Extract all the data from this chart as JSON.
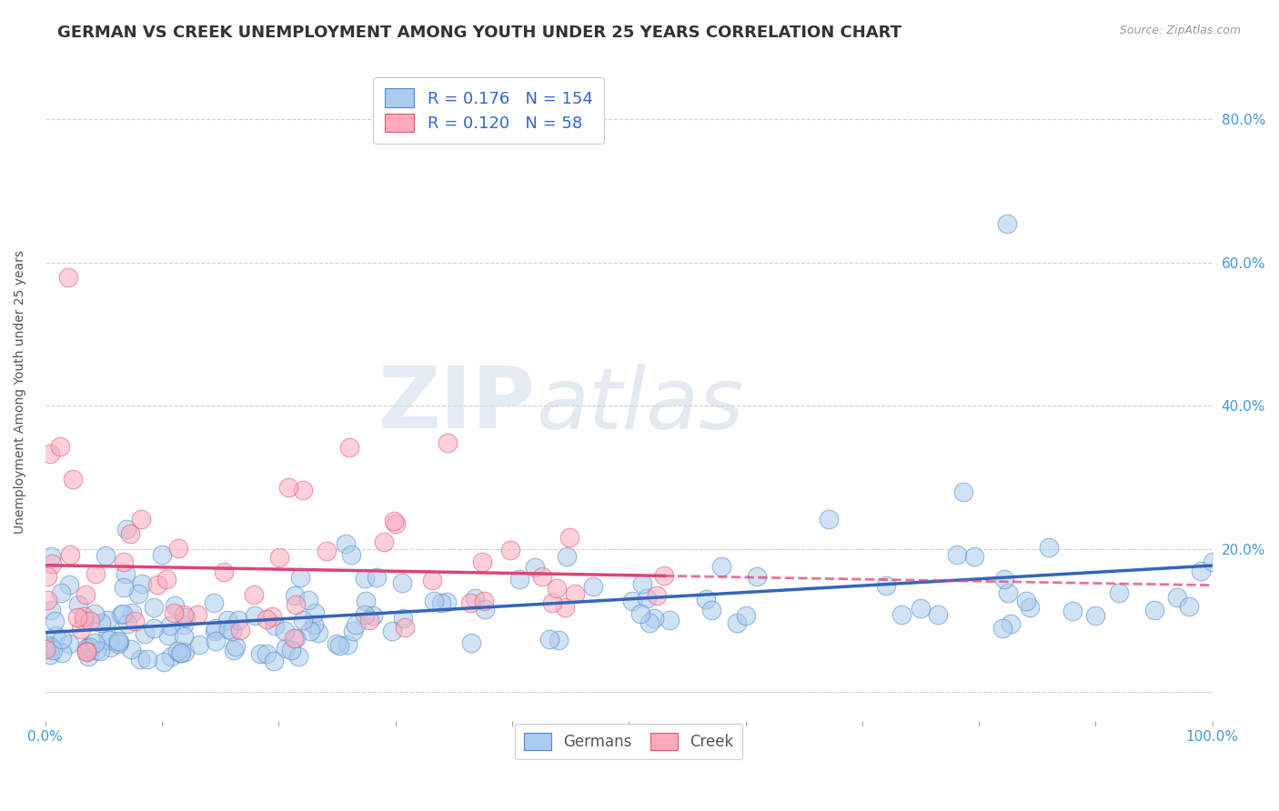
{
  "title": "GERMAN VS CREEK UNEMPLOYMENT AMONG YOUTH UNDER 25 YEARS CORRELATION CHART",
  "source_text": "Source: ZipAtlas.com",
  "ylabel": "Unemployment Among Youth under 25 years",
  "xlim": [
    0,
    1
  ],
  "ylim": [
    -0.04,
    0.88
  ],
  "xticks": [
    0.0,
    0.1,
    0.2,
    0.3,
    0.4,
    0.5,
    0.6,
    0.7,
    0.8,
    0.9,
    1.0
  ],
  "xticklabels": [
    "0.0%",
    "",
    "",
    "",
    "",
    "",
    "",
    "",
    "",
    "",
    "100.0%"
  ],
  "ytick_positions": [
    0.0,
    0.2,
    0.4,
    0.6,
    0.8
  ],
  "yticklabels": [
    "",
    "20.0%",
    "40.0%",
    "60.0%",
    "80.0%"
  ],
  "background_color": "#ffffff",
  "watermark_zip": "ZIP",
  "watermark_atlas": "atlas",
  "legend_R_blue": "0.176",
  "legend_N_blue": "154",
  "legend_R_pink": "0.120",
  "legend_N_pink": "58",
  "blue_fill": "#aaccee",
  "blue_edge": "#5588cc",
  "pink_fill": "#ffaabb",
  "pink_edge": "#dd5577",
  "blue_line_color": "#3366bb",
  "pink_line_color": "#dd4477",
  "title_fontsize": 13,
  "axis_label_fontsize": 10,
  "tick_fontsize": 11,
  "n_blue": 154,
  "n_pink": 58
}
